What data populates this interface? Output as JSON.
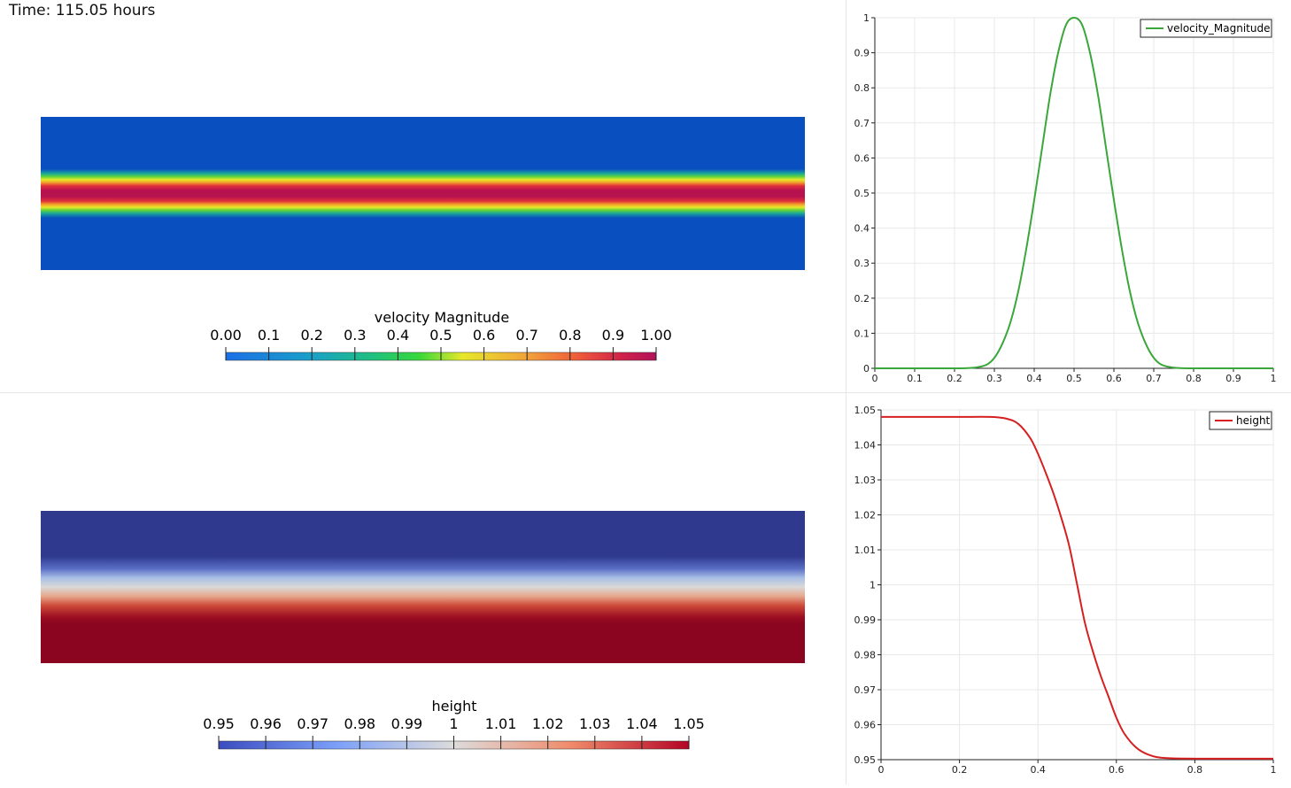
{
  "time_label": "Time: 115.05 hours",
  "colors": {
    "velocity_series": "#3aa73a",
    "height_series": "#d62020",
    "grid": "#e8e8e8"
  },
  "velocity_colorbar": {
    "title": "velocity Magnitude",
    "ticks": [
      "0.00",
      "0.1",
      "0.2",
      "0.3",
      "0.4",
      "0.5",
      "0.6",
      "0.7",
      "0.8",
      "0.9",
      "1.00"
    ],
    "range": [
      0,
      1
    ],
    "colormap": "jet-like (blue-green-yellow-red-magenta)"
  },
  "height_colorbar": {
    "title": "height",
    "ticks": [
      "0.95",
      "0.96",
      "0.97",
      "0.98",
      "0.99",
      "1",
      "1.01",
      "1.02",
      "1.03",
      "1.04",
      "1.05"
    ],
    "range": [
      0.95,
      1.05
    ],
    "colormap": "cool-to-warm"
  },
  "chart_data": [
    {
      "type": "line",
      "legend": "velocity_Magnitude",
      "legend_position": "top-right",
      "grid": true,
      "xlim": [
        0,
        1
      ],
      "ylim": [
        0,
        1
      ],
      "xticks": [
        "0",
        "0.1",
        "0.2",
        "0.3",
        "0.4",
        "0.5",
        "0.6",
        "0.7",
        "0.8",
        "0.9",
        "1"
      ],
      "yticks": [
        "0",
        "0.1",
        "0.2",
        "0.3",
        "0.4",
        "0.5",
        "0.6",
        "0.7",
        "0.8",
        "0.9",
        "1"
      ],
      "series": [
        {
          "name": "velocity_Magnitude",
          "x": [
            0,
            0.1,
            0.2,
            0.25,
            0.28,
            0.3,
            0.32,
            0.34,
            0.36,
            0.38,
            0.4,
            0.42,
            0.44,
            0.46,
            0.48,
            0.5,
            0.52,
            0.54,
            0.56,
            0.58,
            0.6,
            0.62,
            0.64,
            0.66,
            0.68,
            0.7,
            0.72,
            0.75,
            0.8,
            0.9,
            1
          ],
          "y": [
            0,
            0,
            0,
            0.002,
            0.01,
            0.03,
            0.07,
            0.13,
            0.22,
            0.34,
            0.48,
            0.63,
            0.78,
            0.9,
            0.98,
            1.0,
            0.98,
            0.9,
            0.78,
            0.63,
            0.48,
            0.34,
            0.22,
            0.13,
            0.07,
            0.03,
            0.01,
            0.002,
            0,
            0,
            0
          ]
        }
      ]
    },
    {
      "type": "line",
      "legend": "height",
      "legend_position": "top-right",
      "grid": true,
      "xlim": [
        0,
        1
      ],
      "ylim": [
        0.95,
        1.05
      ],
      "xticks": [
        "0",
        "0.2",
        "0.4",
        "0.6",
        "0.8",
        "1"
      ],
      "yticks": [
        "0.95",
        "0.96",
        "0.97",
        "0.98",
        "0.99",
        "1",
        "1.01",
        "1.02",
        "1.03",
        "1.04",
        "1.05"
      ],
      "series": [
        {
          "name": "height",
          "x": [
            0,
            0.1,
            0.2,
            0.28,
            0.32,
            0.35,
            0.38,
            0.4,
            0.42,
            0.44,
            0.46,
            0.48,
            0.5,
            0.52,
            0.54,
            0.56,
            0.58,
            0.6,
            0.62,
            0.65,
            0.68,
            0.72,
            0.8,
            0.9,
            1
          ],
          "y": [
            1.048,
            1.048,
            1.048,
            1.048,
            1.0475,
            1.046,
            1.042,
            1.0375,
            1.032,
            1.026,
            1.019,
            1.011,
            1.0,
            0.989,
            0.981,
            0.974,
            0.968,
            0.962,
            0.9575,
            0.9535,
            0.9515,
            0.9505,
            0.9503,
            0.9503,
            0.9503
          ]
        }
      ]
    }
  ]
}
